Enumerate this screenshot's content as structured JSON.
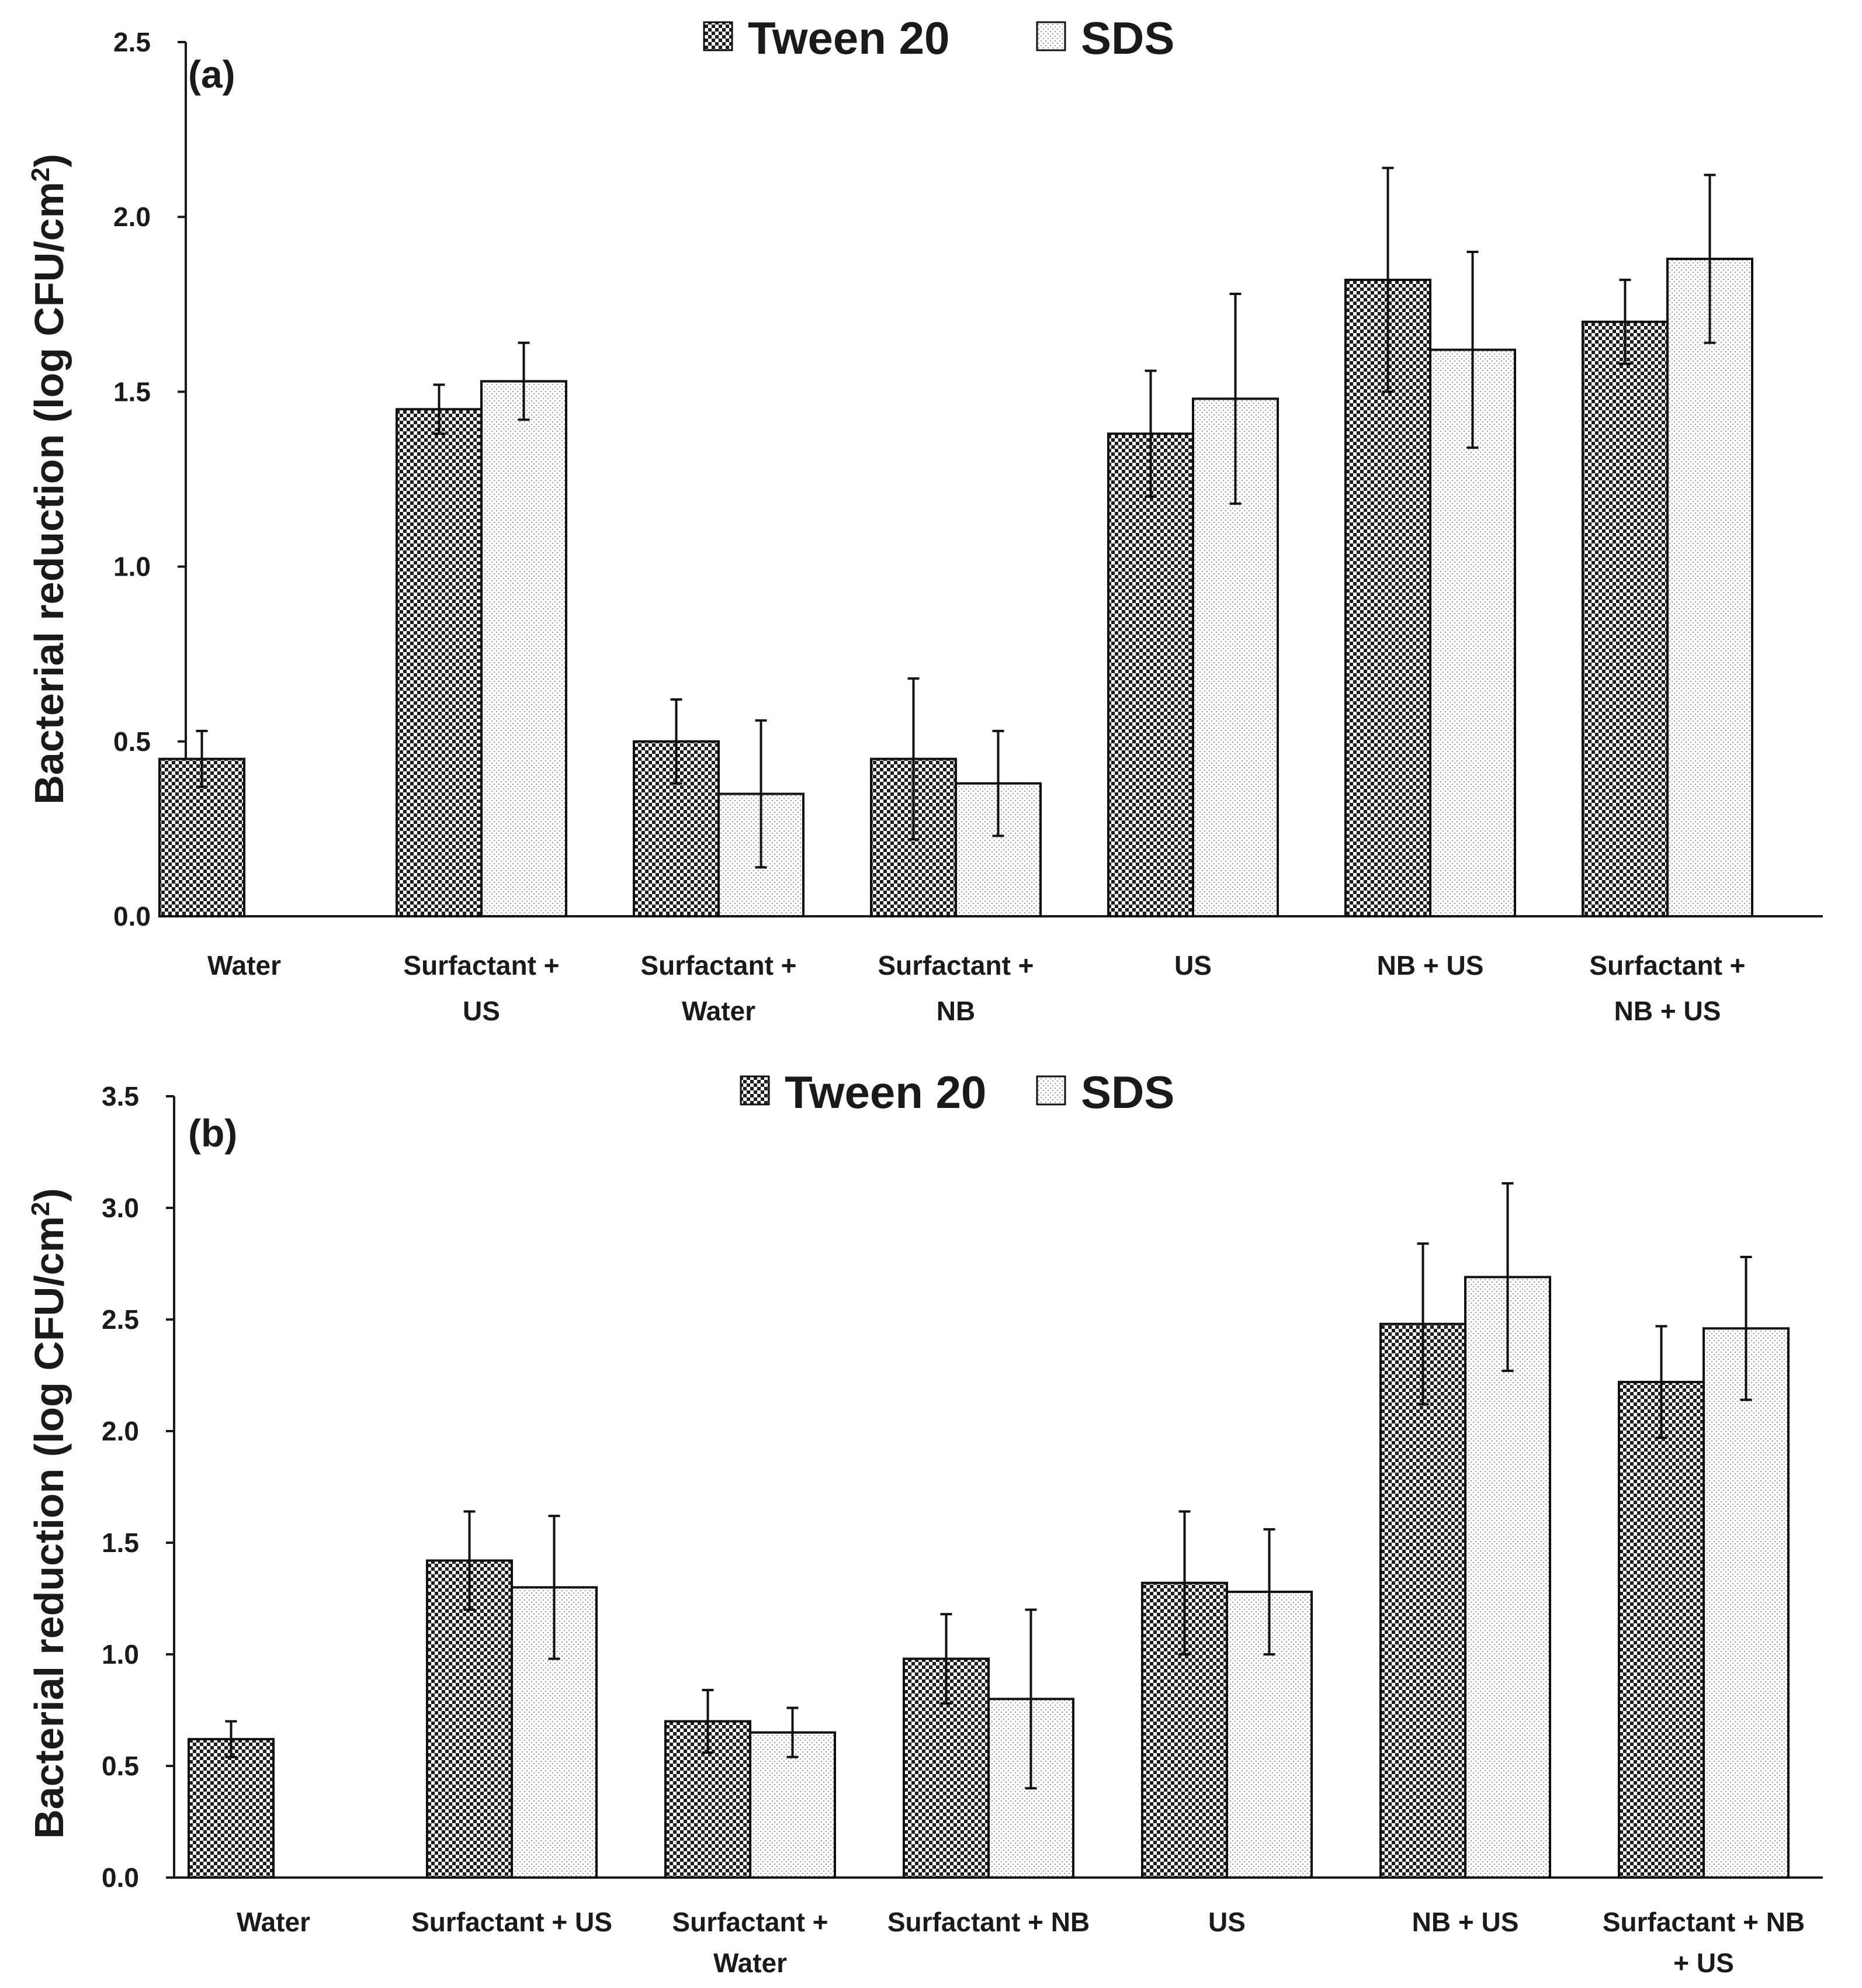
{
  "legend": {
    "series1": "Tween 20",
    "series2": "SDS"
  },
  "colors": {
    "axis": "#1a1a1a",
    "bar_stroke": "#111111",
    "tween_fill": "#4a4a4a",
    "sds_fill": "#efefef"
  },
  "chart_data": [
    {
      "type": "bar",
      "panel_label": "(a)",
      "ylabel": "Bacterial reduction (log CFU/cm",
      "ylabel_sup": "2",
      "ylabel_close": ")",
      "ylim": [
        0,
        2.5
      ],
      "yticks": [
        0,
        0.5,
        1.0,
        1.5,
        2.0,
        2.5
      ],
      "ytick_labels": [
        "0.0",
        "0.5",
        "1.0",
        "1.5",
        "2.0",
        "2.5"
      ],
      "categories": [
        [
          "Water"
        ],
        [
          "Surfactant +",
          "US"
        ],
        [
          "Surfactant +",
          "Water"
        ],
        [
          "Surfactant +",
          "NB"
        ],
        [
          "US"
        ],
        [
          "NB + US"
        ],
        [
          "Surfactant +",
          "NB + US"
        ]
      ],
      "series": [
        {
          "name": "Tween 20",
          "values": [
            0.45,
            1.45,
            0.5,
            0.45,
            1.38,
            1.82,
            1.7
          ],
          "errors": [
            0.08,
            0.07,
            0.12,
            0.23,
            0.18,
            0.32,
            0.12
          ]
        },
        {
          "name": "SDS",
          "values": [
            null,
            1.53,
            0.35,
            0.38,
            1.48,
            1.62,
            1.88
          ],
          "errors": [
            null,
            0.11,
            0.21,
            0.15,
            0.3,
            0.28,
            0.24
          ]
        }
      ],
      "legend_position": "top-center"
    },
    {
      "type": "bar",
      "panel_label": "(b)",
      "ylabel": "Bacterial reduction (log CFU/cm",
      "ylabel_sup": "2",
      "ylabel_close": ")",
      "ylim": [
        0,
        3.5
      ],
      "yticks": [
        0,
        0.5,
        1.0,
        1.5,
        2.0,
        2.5,
        3.0,
        3.5
      ],
      "ytick_labels": [
        "0.0",
        "0.5",
        "1.0",
        "1.5",
        "2.0",
        "2.5",
        "3.0",
        "3.5"
      ],
      "categories": [
        [
          "Water"
        ],
        [
          "Surfactant + US"
        ],
        [
          "Surfactant +",
          "Water"
        ],
        [
          "Surfactant + NB"
        ],
        [
          "US"
        ],
        [
          "NB + US"
        ],
        [
          "Surfactant + NB",
          "+ US"
        ]
      ],
      "series": [
        {
          "name": "Tween 20",
          "values": [
            0.62,
            1.42,
            0.7,
            0.98,
            1.32,
            2.48,
            2.22
          ],
          "errors": [
            0.08,
            0.22,
            0.14,
            0.2,
            0.32,
            0.36,
            0.25
          ]
        },
        {
          "name": "SDS",
          "values": [
            null,
            1.3,
            0.65,
            0.8,
            1.28,
            2.69,
            2.46
          ],
          "errors": [
            null,
            0.32,
            0.11,
            0.4,
            0.28,
            0.42,
            0.32
          ]
        }
      ],
      "legend_position": "top-center"
    }
  ]
}
